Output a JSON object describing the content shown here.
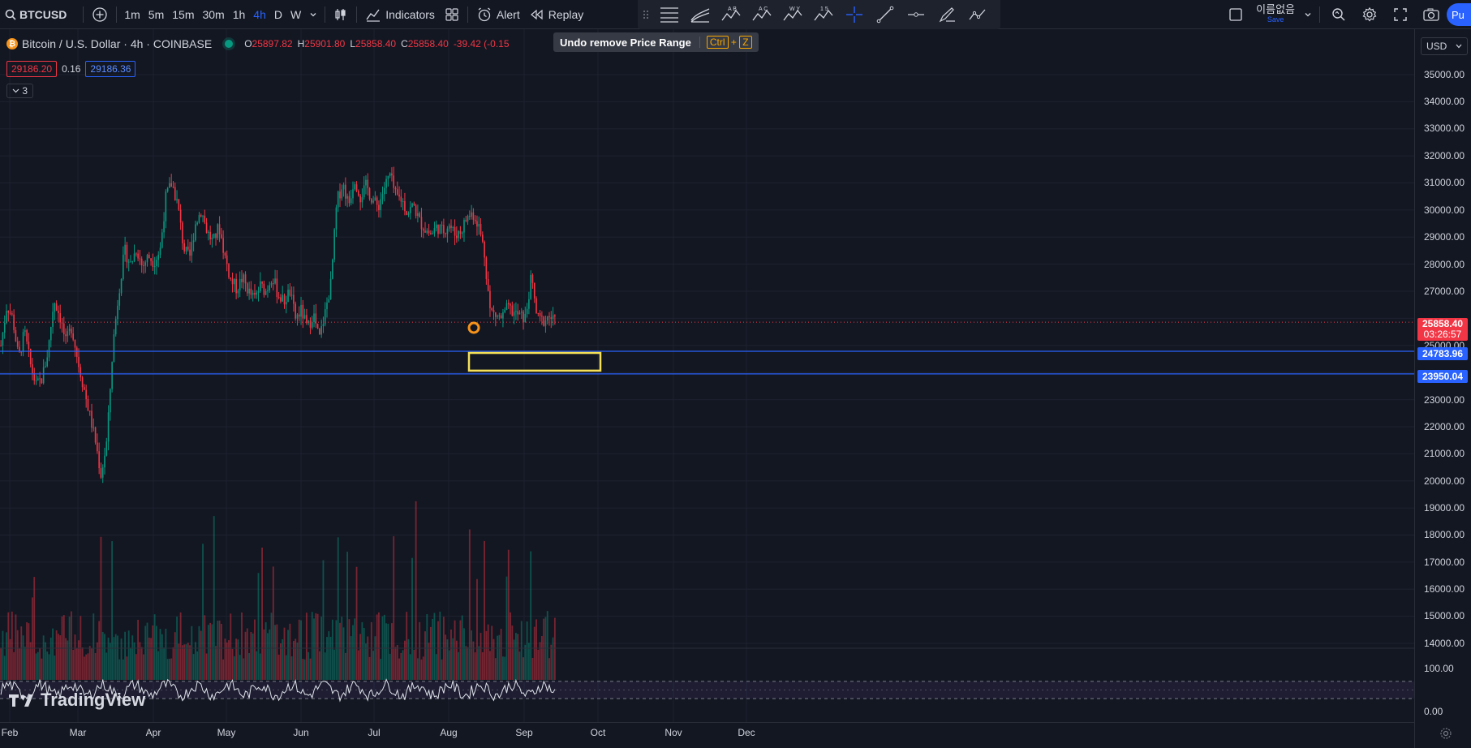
{
  "toolbar": {
    "symbol": "BTCUSD",
    "timeframes": [
      "1m",
      "5m",
      "15m",
      "30m",
      "1h",
      "4h",
      "D",
      "W"
    ],
    "active_timeframe": "4h",
    "indicators_label": "Indicators",
    "alert_label": "Alert",
    "replay_label": "Replay",
    "drawing_labels": [
      "A B",
      "A C",
      "W Y",
      "1 5"
    ],
    "layout_name": "이름없음",
    "layout_save": "Save",
    "publish_label": "Pu"
  },
  "legend": {
    "title": "Bitcoin / U.S. Dollar · 4h · COINBASE",
    "open_key": "O",
    "open": "25897.82",
    "high_key": "H",
    "high": "25901.80",
    "low_key": "L",
    "low": "25858.40",
    "close_key": "C",
    "close": "25858.40",
    "change": "-39.42 (-0.15",
    "bid": "29186.20",
    "spread": "0.16",
    "ask": "29186.36",
    "collapse_count": "3"
  },
  "tooltip": {
    "text": "Undo remove Price Range",
    "hotkey_ctrl": "Ctrl",
    "hotkey_plus": "+",
    "hotkey_key": "Z"
  },
  "price_axis": {
    "currency": "USD",
    "ticks": [
      "35000.00",
      "34000.00",
      "33000.00",
      "32000.00",
      "31000.00",
      "30000.00",
      "29000.00",
      "28000.00",
      "27000.00",
      "25000.00",
      "23000.00",
      "22000.00",
      "21000.00",
      "20000.00",
      "19000.00",
      "18000.00",
      "17000.00",
      "16000.00",
      "15000.00",
      "14000.00"
    ],
    "rsi_ticks": [
      "100.00",
      "0.00"
    ],
    "current_price": "25858.40",
    "countdown": "03:26:57",
    "range_high": "24783.96",
    "range_low": "23950.04"
  },
  "time_axis": {
    "labels": [
      "Feb",
      "Mar",
      "Apr",
      "May",
      "Jun",
      "Jul",
      "Aug",
      "Sep",
      "Oct",
      "Nov",
      "Dec"
    ]
  },
  "watermark": "TradingView",
  "colors": {
    "background": "#131722",
    "up": "#089981",
    "down": "#f23645",
    "accent": "#2962ff",
    "range_box": "#f5e05a",
    "marker": "#f7931a"
  },
  "chart_data": {
    "type": "candlestick",
    "price_range": [
      13400,
      35600
    ],
    "range_lines": [
      24783.96,
      23950.04
    ],
    "current_price": 25858.4,
    "trend_path": [
      [
        0,
        25000
      ],
      [
        1,
        26500
      ],
      [
        2,
        26000
      ],
      [
        3,
        24500
      ],
      [
        4,
        25500
      ],
      [
        5,
        24300
      ],
      [
        6,
        23500
      ],
      [
        7,
        23800
      ],
      [
        8,
        24800
      ],
      [
        9,
        26700
      ],
      [
        10,
        26100
      ],
      [
        11,
        25100
      ],
      [
        12,
        25700
      ],
      [
        13,
        24500
      ],
      [
        14,
        23500
      ],
      [
        15,
        22500
      ],
      [
        16,
        21500
      ],
      [
        17,
        20200
      ],
      [
        18,
        21500
      ],
      [
        19,
        25000
      ],
      [
        20,
        27000
      ],
      [
        21,
        28500
      ],
      [
        22,
        28000
      ],
      [
        23,
        28600
      ],
      [
        24,
        27900
      ],
      [
        25,
        28300
      ],
      [
        26,
        28100
      ],
      [
        27,
        28500
      ],
      [
        28,
        30500
      ],
      [
        29,
        31000
      ],
      [
        30,
        30200
      ],
      [
        31,
        28600
      ],
      [
        32,
        28200
      ],
      [
        33,
        29500
      ],
      [
        34,
        30000
      ],
      [
        35,
        29200
      ],
      [
        36,
        28800
      ],
      [
        37,
        29400
      ],
      [
        38,
        28300
      ],
      [
        39,
        27400
      ],
      [
        40,
        27100
      ],
      [
        41,
        27500
      ],
      [
        42,
        27000
      ],
      [
        43,
        26700
      ],
      [
        44,
        27200
      ],
      [
        45,
        27000
      ],
      [
        46,
        27600
      ],
      [
        47,
        26900
      ],
      [
        48,
        26600
      ],
      [
        49,
        27000
      ],
      [
        50,
        26000
      ],
      [
        51,
        26300
      ],
      [
        52,
        25600
      ],
      [
        53,
        26200
      ],
      [
        54,
        25200
      ],
      [
        55,
        26200
      ],
      [
        56,
        27300
      ],
      [
        57,
        30300
      ],
      [
        58,
        31000
      ],
      [
        59,
        30200
      ],
      [
        60,
        31200
      ],
      [
        61,
        30500
      ],
      [
        62,
        30900
      ],
      [
        63,
        30400
      ],
      [
        64,
        30100
      ],
      [
        65,
        30800
      ],
      [
        66,
        31300
      ],
      [
        67,
        30500
      ],
      [
        68,
        30400
      ],
      [
        69,
        29900
      ],
      [
        70,
        30200
      ],
      [
        71,
        29600
      ],
      [
        72,
        29300
      ],
      [
        73,
        29100
      ],
      [
        74,
        29400
      ],
      [
        75,
        29200
      ],
      [
        76,
        29500
      ],
      [
        77,
        29100
      ],
      [
        78,
        29200
      ],
      [
        79,
        29700
      ],
      [
        80,
        29900
      ],
      [
        81,
        29500
      ],
      [
        82,
        28500
      ],
      [
        83,
        26300
      ],
      [
        84,
        26100
      ],
      [
        85,
        26000
      ],
      [
        86,
        26400
      ],
      [
        87,
        26200
      ],
      [
        88,
        26100
      ],
      [
        89,
        26000
      ],
      [
        90,
        27500
      ],
      [
        91,
        26000
      ],
      [
        92,
        25900
      ],
      [
        93,
        26100
      ],
      [
        94,
        25850
      ]
    ],
    "rsi_range": [
      0,
      100
    ],
    "rsi_levels": [
      70,
      30
    ]
  }
}
